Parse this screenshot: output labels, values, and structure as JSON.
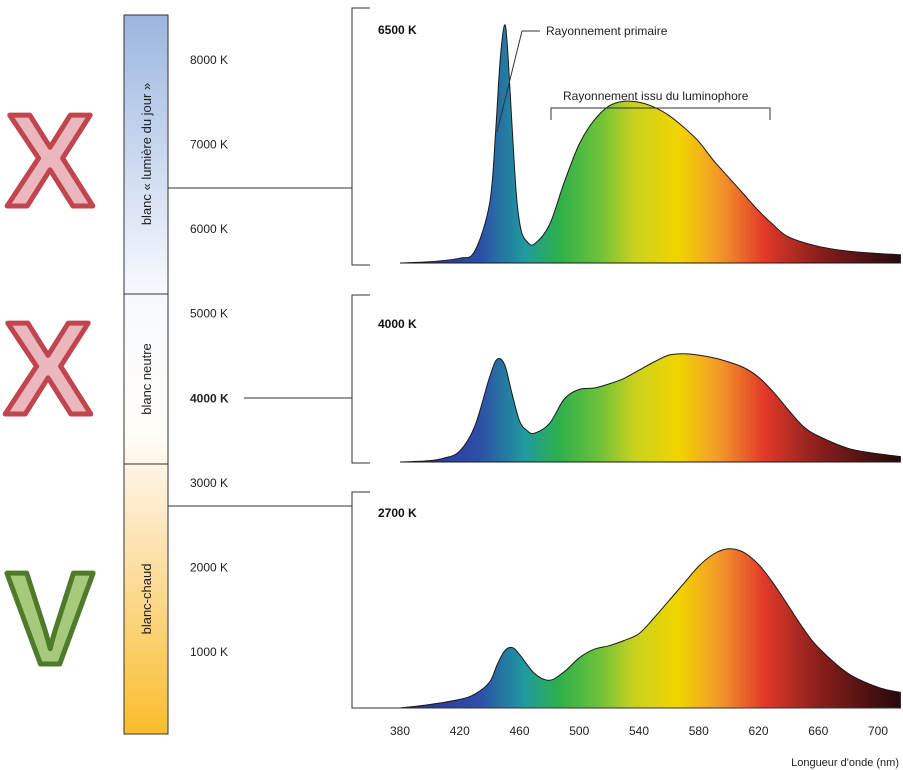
{
  "colors": {
    "cross_fill": "#eab7bd",
    "cross_stroke": "#c0454e",
    "check_fill": "#a6c97b",
    "check_stroke": "#4f7a2c",
    "cool_top": "#9cb6e0",
    "warm_bottom": "#f9bd2b"
  },
  "marks": [
    {
      "symbol": "X",
      "meaning": "cross",
      "row": "blanc « lumière du jour »"
    },
    {
      "symbol": "X",
      "meaning": "cross",
      "row": "blanc neutre"
    },
    {
      "symbol": "V",
      "meaning": "check",
      "row": "blanc-chaud"
    }
  ],
  "temperature_scale": {
    "ticks": [
      {
        "label": "8000 K",
        "value": 8000,
        "bold": false
      },
      {
        "label": "7000 K",
        "value": 7000,
        "bold": false
      },
      {
        "label": "6000 K",
        "value": 6000,
        "bold": false
      },
      {
        "label": "5000 K",
        "value": 5000,
        "bold": false
      },
      {
        "label": "4000 K",
        "value": 4000,
        "bold": true
      },
      {
        "label": "3000 K",
        "value": 3000,
        "bold": false
      },
      {
        "label": "2000 K",
        "value": 2000,
        "bold": false
      },
      {
        "label": "1000 K",
        "value": 1000,
        "bold": false
      }
    ],
    "bands": [
      {
        "label": "blanc « lumière du jour »",
        "from_k": 5000,
        "to_k": 8600
      },
      {
        "label": "blanc neutre",
        "from_k": 3000,
        "to_k": 5000
      },
      {
        "label": "blanc-chaud",
        "from_k": 0,
        "to_k": 3000
      }
    ]
  },
  "chart_data": {
    "type": "area",
    "x_ticks": [
      380,
      420,
      460,
      500,
      540,
      580,
      620,
      660,
      700
    ],
    "xlim": [
      380,
      715
    ],
    "xlabel": "Longueur d'onde (nm)",
    "annotations": [
      "Rayonnement primaire",
      "Rayonnement issu du luminophore"
    ],
    "series": [
      {
        "name": "6500 K",
        "x": [
          380,
          400,
          420,
          430,
          440,
          444,
          447,
          450,
          452,
          455,
          458,
          461,
          465,
          470,
          480,
          490,
          500,
          510,
          520,
          530,
          540,
          550,
          560,
          570,
          580,
          590,
          600,
          610,
          620,
          630,
          640,
          660,
          680,
          700,
          715
        ],
        "y": [
          0,
          0.005,
          0.02,
          0.05,
          0.25,
          0.55,
          0.85,
          1.0,
          0.9,
          0.58,
          0.28,
          0.14,
          0.09,
          0.08,
          0.16,
          0.34,
          0.5,
          0.6,
          0.66,
          0.68,
          0.675,
          0.655,
          0.62,
          0.57,
          0.51,
          0.43,
          0.36,
          0.29,
          0.22,
          0.16,
          0.11,
          0.07,
          0.05,
          0.04,
          0.035
        ]
      },
      {
        "name": "4000 K",
        "x": [
          380,
          400,
          410,
          420,
          430,
          440,
          445,
          450,
          455,
          460,
          465,
          470,
          480,
          490,
          500,
          510,
          520,
          530,
          540,
          550,
          560,
          570,
          580,
          590,
          600,
          610,
          620,
          630,
          640,
          650,
          660,
          680,
          700,
          715
        ],
        "y": [
          0,
          0.01,
          0.03,
          0.08,
          0.26,
          0.62,
          0.75,
          0.71,
          0.5,
          0.3,
          0.23,
          0.21,
          0.28,
          0.46,
          0.53,
          0.54,
          0.57,
          0.61,
          0.67,
          0.73,
          0.78,
          0.79,
          0.78,
          0.76,
          0.73,
          0.69,
          0.62,
          0.51,
          0.38,
          0.26,
          0.19,
          0.1,
          0.06,
          0.04
        ]
      },
      {
        "name": "2700 K",
        "x": [
          380,
          400,
          420,
          430,
          440,
          445,
          450,
          455,
          460,
          470,
          480,
          490,
          500,
          510,
          520,
          530,
          540,
          550,
          560,
          570,
          580,
          590,
          600,
          610,
          620,
          630,
          640,
          650,
          660,
          680,
          700,
          715
        ],
        "y": [
          0,
          0.02,
          0.05,
          0.08,
          0.15,
          0.25,
          0.33,
          0.35,
          0.31,
          0.2,
          0.16,
          0.21,
          0.29,
          0.34,
          0.36,
          0.39,
          0.43,
          0.52,
          0.62,
          0.72,
          0.82,
          0.89,
          0.92,
          0.9,
          0.83,
          0.72,
          0.59,
          0.46,
          0.35,
          0.2,
          0.12,
          0.09
        ]
      }
    ]
  }
}
